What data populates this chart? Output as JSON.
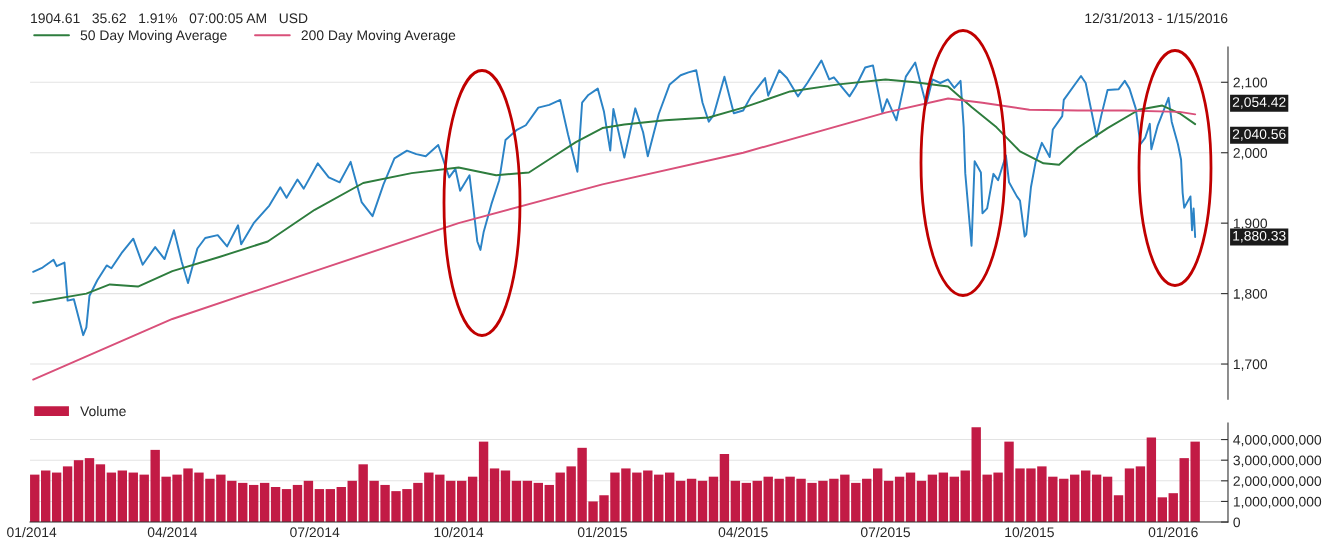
{
  "chart_data": [
    {
      "type": "line",
      "subtitle": "1904.61   35.62   1.91%   07:00:05 AM   USD",
      "annotations": [
        "12/31/2013 - 1/15/2016",
        {
          "text": "2,054.42",
          "x": "2016-01-15",
          "y": 2054.42
        },
        {
          "text": "2,040.56",
          "x": "2016-01-15",
          "y": 2040.56
        },
        {
          "text": "1,880.33",
          "x": "2016-01-15",
          "y": 1880.33
        }
      ],
      "series": [
        {
          "color": "#2b83c6",
          "x": [
            "2014-01-02",
            "2014-01-08",
            "2014-01-15",
            "2014-01-17",
            "2014-01-22",
            "2014-01-24",
            "2014-01-28",
            "2014-02-03",
            "2014-02-05",
            "2014-02-07",
            "2014-02-12",
            "2014-02-18",
            "2014-02-21",
            "2014-02-28",
            "2014-03-07",
            "2014-03-13",
            "2014-03-21",
            "2014-03-27",
            "2014-04-02",
            "2014-04-07",
            "2014-04-11",
            "2014-04-17",
            "2014-04-22",
            "2014-04-30",
            "2014-05-06",
            "2014-05-13",
            "2014-05-15",
            "2014-05-23",
            "2014-06-02",
            "2014-06-09",
            "2014-06-13",
            "2014-06-20",
            "2014-06-24",
            "2014-07-03",
            "2014-07-10",
            "2014-07-17",
            "2014-07-24",
            "2014-07-31",
            "2014-08-07",
            "2014-08-14",
            "2014-08-21",
            "2014-08-29",
            "2014-09-04",
            "2014-09-10",
            "2014-09-18",
            "2014-09-25",
            "2014-09-29",
            "2014-10-02",
            "2014-10-08",
            "2014-10-13",
            "2014-10-15",
            "2014-10-17",
            "2014-10-22",
            "2014-10-27",
            "2014-10-31",
            "2014-11-07",
            "2014-11-13",
            "2014-11-21",
            "2014-11-28",
            "2014-12-05",
            "2014-12-10",
            "2014-12-16",
            "2014-12-19",
            "2014-12-23",
            "2014-12-29",
            "2015-01-02",
            "2015-01-06",
            "2015-01-08",
            "2015-01-15",
            "2015-01-22",
            "2015-01-27",
            "2015-01-30",
            "2015-02-06",
            "2015-02-13",
            "2015-02-20",
            "2015-02-25",
            "2015-03-02",
            "2015-03-06",
            "2015-03-10",
            "2015-03-13",
            "2015-03-20",
            "2015-03-26",
            "2015-04-01",
            "2015-04-06",
            "2015-04-15",
            "2015-04-17",
            "2015-04-24",
            "2015-04-29",
            "2015-05-06",
            "2015-05-12",
            "2015-05-21",
            "2015-05-26",
            "2015-05-29",
            "2015-06-08",
            "2015-06-12",
            "2015-06-18",
            "2015-06-23",
            "2015-06-29",
            "2015-07-02",
            "2015-07-08",
            "2015-07-14",
            "2015-07-20",
            "2015-07-27",
            "2015-07-31",
            "2015-08-05",
            "2015-08-10",
            "2015-08-14",
            "2015-08-18",
            "2015-08-20",
            "2015-08-21",
            "2015-08-25",
            "2015-08-27",
            "2015-08-31",
            "2015-09-01",
            "2015-09-04",
            "2015-09-08",
            "2015-09-11",
            "2015-09-16",
            "2015-09-18",
            "2015-09-23",
            "2015-09-25",
            "2015-09-28",
            "2015-09-29",
            "2015-10-02",
            "2015-10-05",
            "2015-10-09",
            "2015-10-14",
            "2015-10-16",
            "2015-10-22",
            "2015-10-23",
            "2015-11-03",
            "2015-11-06",
            "2015-11-13",
            "2015-11-16",
            "2015-11-20",
            "2015-11-27",
            "2015-12-01",
            "2015-12-04",
            "2015-12-08",
            "2015-12-11",
            "2015-12-14",
            "2015-12-17",
            "2015-12-18",
            "2015-12-22",
            "2015-12-29",
            "2015-12-31",
            "2016-01-04",
            "2016-01-06",
            "2016-01-07",
            "2016-01-08",
            "2016-01-12",
            "2016-01-13",
            "2016-01-14",
            "2016-01-15"
          ],
          "values": [
            1831,
            1837,
            1848,
            1839,
            1844,
            1790,
            1792,
            1741,
            1752,
            1797,
            1819,
            1840,
            1836,
            1859,
            1878,
            1841,
            1866,
            1849,
            1890,
            1845,
            1815,
            1864,
            1879,
            1883,
            1867,
            1897,
            1870,
            1900,
            1925,
            1951,
            1936,
            1962,
            1949,
            1985,
            1965,
            1958,
            1987,
            1930,
            1910,
            1955,
            1992,
            2003,
            1998,
            1995,
            2011,
            1965,
            1977,
            1946,
            1968,
            1874,
            1862,
            1887,
            1927,
            1961,
            2018,
            2032,
            2039,
            2064,
            2068,
            2075,
            2026,
            1973,
            2071,
            2082,
            2091,
            2058,
            2003,
            2062,
            1993,
            2063,
            2029,
            1995,
            2055,
            2097,
            2110,
            2114,
            2117,
            2071,
            2044,
            2053,
            2108,
            2056,
            2060,
            2080,
            2106,
            2081,
            2117,
            2106,
            2080,
            2099,
            2131,
            2104,
            2107,
            2080,
            2094,
            2121,
            2124,
            2057,
            2076,
            2046,
            2108,
            2128,
            2068,
            2104,
            2099,
            2104,
            2092,
            2102,
            2036,
            1971,
            1868,
            1988,
            1972,
            1914,
            1921,
            1970,
            1961,
            1996,
            1958,
            1938,
            1932,
            1881,
            1884,
            1951,
            1987,
            2014,
            1994,
            2033,
            2052,
            2075,
            2109,
            2099,
            2023,
            2053,
            2089,
            2090,
            2102,
            2091,
            2063,
            2012,
            2021,
            2041,
            2005,
            2038,
            2078,
            2044,
            2012,
            1990,
            1943,
            1922,
            1938,
            1890,
            1921,
            1880.33
          ]
        },
        {
          "name": "50 Day Moving Average",
          "color": "#2e7d3e",
          "x": [
            "2014-01-02",
            "2014-02-05",
            "2014-02-20",
            "2014-03-10",
            "2014-04-01",
            "2014-05-01",
            "2014-06-01",
            "2014-07-01",
            "2014-08-01",
            "2014-09-01",
            "2014-10-01",
            "2014-10-25",
            "2014-11-15",
            "2014-12-01",
            "2014-12-15",
            "2015-01-01",
            "2015-01-15",
            "2015-02-10",
            "2015-03-10",
            "2015-04-01",
            "2015-05-01",
            "2015-06-01",
            "2015-07-01",
            "2015-07-20",
            "2015-08-10",
            "2015-08-25",
            "2015-09-10",
            "2015-09-25",
            "2015-10-10",
            "2015-10-20",
            "2015-11-01",
            "2015-11-20",
            "2015-12-10",
            "2015-12-25",
            "2016-01-05",
            "2016-01-15"
          ],
          "values": [
            1787,
            1800,
            1813,
            1810,
            1832,
            1852,
            1874,
            1919,
            1957,
            1971,
            1979,
            1968,
            1972,
            1995,
            2015,
            2035,
            2040,
            2046,
            2050,
            2064,
            2087,
            2097,
            2104,
            2100,
            2094,
            2065,
            2036,
            2002,
            1985,
            1983,
            2007,
            2035,
            2061,
            2067,
            2056,
            2040.56
          ]
        },
        {
          "name": "200 Day Moving Average",
          "color": "#d9507a",
          "x": [
            "2014-01-02",
            "2014-04-01",
            "2014-07-01",
            "2014-10-01",
            "2015-01-01",
            "2015-04-01",
            "2015-07-01",
            "2015-08-10",
            "2015-09-01",
            "2015-10-01",
            "2015-11-01",
            "2015-12-01",
            "2016-01-05",
            "2016-01-15"
          ],
          "values": [
            1678,
            1764,
            1832,
            1900,
            1955,
            2000,
            2057,
            2077,
            2071,
            2061,
            2060,
            2060,
            2058,
            2054.42
          ]
        }
      ],
      "xlim": [
        "2013-12-31",
        "2016-02-05"
      ],
      "ylim": [
        1650,
        2150
      ],
      "yticks": [
        {
          "value": 1700,
          "label": "1,700"
        },
        {
          "value": 1800,
          "label": "1,800"
        },
        {
          "value": 1900,
          "label": "1,900"
        },
        {
          "value": 2000,
          "label": "2,000"
        },
        {
          "value": 2100,
          "label": "2,100"
        }
      ],
      "tick_labels": "y",
      "grid": "y",
      "legend": "top left"
    },
    {
      "type": "bar",
      "x": [
        "2014-01-03",
        "2014-01-10",
        "2014-01-17",
        "2014-01-24",
        "2014-01-31",
        "2014-02-07",
        "2014-02-14",
        "2014-02-21",
        "2014-02-28",
        "2014-03-07",
        "2014-03-14",
        "2014-03-21",
        "2014-03-28",
        "2014-04-04",
        "2014-04-11",
        "2014-04-18",
        "2014-04-25",
        "2014-05-02",
        "2014-05-09",
        "2014-05-16",
        "2014-05-23",
        "2014-05-30",
        "2014-06-06",
        "2014-06-13",
        "2014-06-20",
        "2014-06-27",
        "2014-07-04",
        "2014-07-11",
        "2014-07-18",
        "2014-07-25",
        "2014-08-01",
        "2014-08-08",
        "2014-08-15",
        "2014-08-22",
        "2014-08-29",
        "2014-09-05",
        "2014-09-12",
        "2014-09-19",
        "2014-09-26",
        "2014-10-03",
        "2014-10-10",
        "2014-10-17",
        "2014-10-24",
        "2014-10-31",
        "2014-11-07",
        "2014-11-14",
        "2014-11-21",
        "2014-11-28",
        "2014-12-05",
        "2014-12-12",
        "2014-12-19",
        "2014-12-26",
        "2015-01-02",
        "2015-01-09",
        "2015-01-16",
        "2015-01-23",
        "2015-01-30",
        "2015-02-06",
        "2015-02-13",
        "2015-02-20",
        "2015-02-27",
        "2015-03-06",
        "2015-03-13",
        "2015-03-20",
        "2015-03-27",
        "2015-04-03",
        "2015-04-10",
        "2015-04-17",
        "2015-04-24",
        "2015-05-01",
        "2015-05-08",
        "2015-05-15",
        "2015-05-22",
        "2015-05-29",
        "2015-06-05",
        "2015-06-12",
        "2015-06-19",
        "2015-06-26",
        "2015-07-03",
        "2015-07-10",
        "2015-07-17",
        "2015-07-24",
        "2015-07-31",
        "2015-08-07",
        "2015-08-14",
        "2015-08-21",
        "2015-08-28",
        "2015-09-04",
        "2015-09-11",
        "2015-09-18",
        "2015-09-25",
        "2015-10-02",
        "2015-10-09",
        "2015-10-16",
        "2015-10-23",
        "2015-10-30",
        "2015-11-06",
        "2015-11-13",
        "2015-11-20",
        "2015-11-27",
        "2015-12-04",
        "2015-12-11",
        "2015-12-18",
        "2015-12-25",
        "2016-01-01",
        "2016-01-08",
        "2016-01-15"
      ],
      "series": [
        {
          "name": "Volume",
          "color": "#c21b45",
          "values": [
            2300000000,
            2500000000,
            2400000000,
            2700000000,
            3000000000,
            3100000000,
            2800000000,
            2400000000,
            2500000000,
            2400000000,
            2300000000,
            3500000000,
            2200000000,
            2300000000,
            2600000000,
            2400000000,
            2100000000,
            2300000000,
            2000000000,
            1900000000,
            1800000000,
            1900000000,
            1700000000,
            1600000000,
            1800000000,
            2000000000,
            1600000000,
            1600000000,
            1700000000,
            2000000000,
            2800000000,
            2000000000,
            1800000000,
            1500000000,
            1600000000,
            1900000000,
            2400000000,
            2300000000,
            2000000000,
            2000000000,
            2200000000,
            3900000000,
            2600000000,
            2500000000,
            2000000000,
            2000000000,
            1900000000,
            1800000000,
            2400000000,
            2700000000,
            3600000000,
            1000000000,
            1300000000,
            2400000000,
            2600000000,
            2400000000,
            2500000000,
            2300000000,
            2400000000,
            2000000000,
            2100000000,
            2000000000,
            2200000000,
            3300000000,
            2000000000,
            1900000000,
            2000000000,
            2200000000,
            2100000000,
            2200000000,
            2100000000,
            1900000000,
            2000000000,
            2100000000,
            2300000000,
            1900000000,
            2100000000,
            2600000000,
            2000000000,
            2200000000,
            2400000000,
            2000000000,
            2300000000,
            2400000000,
            2200000000,
            2500000000,
            4600000000,
            2300000000,
            2400000000,
            3900000000,
            2600000000,
            2600000000,
            2700000000,
            2200000000,
            2100000000,
            2300000000,
            2500000000,
            2300000000,
            2200000000,
            1300000000,
            2600000000,
            2700000000,
            4100000000,
            1200000000,
            1400000000,
            3100000000,
            3900000000
          ]
        }
      ],
      "xlim": [
        "2013-12-31",
        "2016-02-05"
      ],
      "ylim": [
        0,
        4800000000
      ],
      "xticks": [
        {
          "value": "2014-01-01",
          "label": "01/2014"
        },
        {
          "value": "2014-04-01",
          "label": "04/2014"
        },
        {
          "value": "2014-07-01",
          "label": "07/2014"
        },
        {
          "value": "2014-10-01",
          "label": "10/2014"
        },
        {
          "value": "2015-01-01",
          "label": "01/2015"
        },
        {
          "value": "2015-04-01",
          "label": "04/2015"
        },
        {
          "value": "2015-07-01",
          "label": "07/2015"
        },
        {
          "value": "2015-10-01",
          "label": "10/2015"
        },
        {
          "value": "2016-01-01",
          "label": "01/2016"
        }
      ],
      "yticks": [
        0,
        {
          "value": 1000000000,
          "label": "1,000,000,000"
        },
        {
          "value": 2000000000,
          "label": "2,000,000,000"
        },
        {
          "value": 3000000000,
          "label": "3,000,000,000"
        },
        {
          "value": 4000000000,
          "label": "4,000,000,000"
        }
      ],
      "grid": "y",
      "legend": "top left"
    }
  ]
}
